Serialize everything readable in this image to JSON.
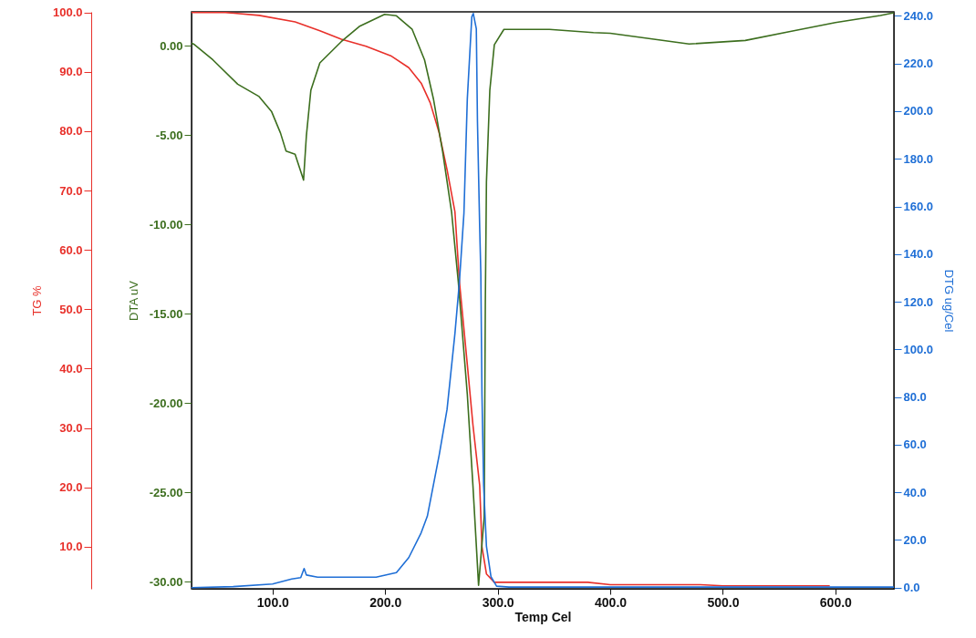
{
  "chart_data": {
    "type": "line",
    "xlabel": "Temp Cel",
    "ylabel": "TG %",
    "y2label": "DTG ug/Cel",
    "y3label": "DTA uV",
    "xlim": [
      28,
      652
    ],
    "xticks": [
      {
        "value": 100,
        "label": "100.0"
      },
      {
        "value": 200,
        "label": "200.0"
      },
      {
        "value": 300,
        "label": "300.0"
      },
      {
        "value": 400,
        "label": "400.0"
      },
      {
        "value": 500,
        "label": "500.0"
      },
      {
        "value": 600,
        "label": "600.0"
      }
    ],
    "ylim": [
      2.9,
      100.1
    ],
    "yticks": [
      {
        "value": 10,
        "label": "10.0"
      },
      {
        "value": 20,
        "label": "20.0"
      },
      {
        "value": 30,
        "label": "30.0"
      },
      {
        "value": 40,
        "label": "40.0"
      },
      {
        "value": 50,
        "label": "50.0"
      },
      {
        "value": 60,
        "label": "60.0"
      },
      {
        "value": 70,
        "label": "70.0"
      },
      {
        "value": 80,
        "label": "80.0"
      },
      {
        "value": 90,
        "label": "90.0"
      },
      {
        "value": 100,
        "label": "100.0"
      }
    ],
    "y3lim": [
      -30.4,
      1.9
    ],
    "y3ticks": [
      {
        "value": -30,
        "label": "-30.00"
      },
      {
        "value": -25,
        "label": "-25.00"
      },
      {
        "value": -20,
        "label": "-20.00"
      },
      {
        "value": -15,
        "label": "-15.00"
      },
      {
        "value": -10,
        "label": "-10.00"
      },
      {
        "value": -5,
        "label": "-5.00"
      },
      {
        "value": 0,
        "label": "0.00"
      }
    ],
    "y2lim": [
      -0.5,
      241.7
    ],
    "y2ticks": [
      {
        "value": 0,
        "label": "0.0"
      },
      {
        "value": 20,
        "label": "20.0"
      },
      {
        "value": 40,
        "label": "40.0"
      },
      {
        "value": 60,
        "label": "60.0"
      },
      {
        "value": 80,
        "label": "80.0"
      },
      {
        "value": 100,
        "label": "100.0"
      },
      {
        "value": 120,
        "label": "120.0"
      },
      {
        "value": 140,
        "label": "140.0"
      },
      {
        "value": 160,
        "label": "160.0"
      },
      {
        "value": 180,
        "label": "180.0"
      },
      {
        "value": 200,
        "label": "200.0"
      },
      {
        "value": 220,
        "label": "220.0"
      },
      {
        "value": 240,
        "label": "240.0"
      }
    ],
    "grid": false,
    "series": [
      {
        "color": "#e8302a",
        "x": [
          28,
          58,
          88,
          120,
          142,
          161,
          183,
          205,
          221,
          232,
          240,
          248,
          255,
          262,
          266,
          273,
          278,
          284,
          286,
          290,
          297,
          380,
          400,
          480,
          500,
          595
        ],
        "values": [
          100,
          100,
          99.5,
          98.4,
          96.9,
          95.5,
          94.3,
          92.7,
          90.7,
          88.1,
          84.8,
          79.7,
          73.5,
          66.4,
          54.6,
          40.7,
          30.5,
          20.3,
          10.0,
          5.4,
          4.0,
          4.0,
          3.6,
          3.6,
          3.4,
          3.4
        ]
      },
      {
        "color": "#3c6e1e",
        "axis": "y3",
        "x": [
          28,
          30.7,
          47,
          69,
          88,
          99,
          107,
          112,
          120,
          127.5,
          130,
          134,
          142,
          161,
          177,
          199.5,
          210,
          224,
          235,
          243,
          251,
          259,
          265,
          273,
          278,
          283,
          288,
          289,
          290,
          293,
          297,
          305.5,
          346,
          385,
          400,
          470,
          520,
          560,
          600,
          640,
          652
        ],
        "values": [
          0.15,
          0.06,
          -0.79,
          -2.15,
          -2.84,
          -3.67,
          -4.88,
          -5.9,
          -6.07,
          -7.52,
          -5.05,
          -2.49,
          -0.96,
          0.23,
          1.08,
          1.76,
          1.68,
          0.92,
          -0.79,
          -3.0,
          -5.9,
          -9.29,
          -13.23,
          -19.52,
          -24.63,
          -30.2,
          -26.37,
          -14.41,
          -7.61,
          -2.49,
          0.06,
          0.92,
          0.92,
          0.74,
          0.7,
          0.1,
          0.3,
          0.8,
          1.3,
          1.7,
          1.85
        ]
      },
      {
        "color": "#1f6fd6",
        "axis": "y2",
        "x": [
          28,
          65,
          100,
          117,
          125,
          128,
          130,
          140,
          192,
          210,
          221,
          232,
          237.5,
          248,
          255,
          262,
          266,
          270,
          273,
          277,
          278.3,
          281,
          282,
          284,
          285,
          286,
          287.5,
          290,
          294,
          299,
          310,
          652
        ],
        "values": [
          0,
          0.4,
          1.5,
          3.6,
          4.2,
          8.0,
          5.3,
          4.4,
          4.4,
          6.3,
          12.6,
          23,
          30,
          55.6,
          74.8,
          106.7,
          128.5,
          157.2,
          205.2,
          239.7,
          241,
          234.6,
          196,
          151,
          132,
          81.3,
          43,
          17.3,
          4.6,
          0.6,
          0.2,
          0.2
        ]
      }
    ]
  }
}
